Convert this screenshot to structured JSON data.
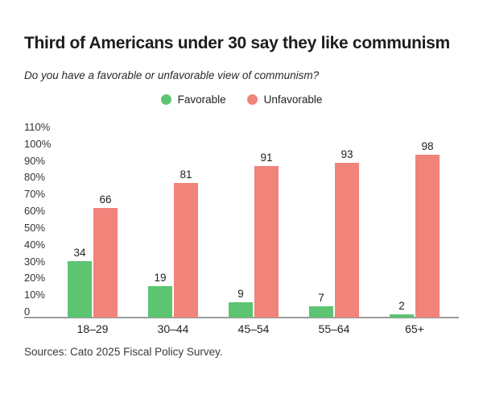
{
  "title": "Third of Americans under 30 say they like communism",
  "subtitle": "Do you have a favorable or unfavorable view of communism?",
  "source": "Sources: Cato 2025 Fiscal Policy Survey.",
  "colors": {
    "favorable": "#5dc472",
    "unfavorable": "#f0837a",
    "axis_line": "#9b9b9b",
    "text": "#1d1d1d"
  },
  "legend": [
    {
      "label": "Favorable",
      "color": "#5dc472"
    },
    {
      "label": "Unfavorable",
      "color": "#f0837a"
    }
  ],
  "chart_data": {
    "type": "bar",
    "title": "Third of Americans under 30 say they like communism",
    "subtitle": "Do you have a favorable or unfavorable view of communism?",
    "categories": [
      "18–29",
      "30–44",
      "45–54",
      "55–64",
      "65+"
    ],
    "series": [
      {
        "name": "Favorable",
        "color": "#5dc472",
        "values": [
          34,
          19,
          9,
          7,
          2
        ]
      },
      {
        "name": "Unfavorable",
        "color": "#f0837a",
        "values": [
          66,
          81,
          91,
          93,
          98
        ]
      }
    ],
    "xlabel": "",
    "ylabel": "",
    "ylim": [
      0,
      110
    ],
    "yticks": [
      {
        "value": 110,
        "label": "110%"
      },
      {
        "value": 100,
        "label": "100%"
      },
      {
        "value": 90,
        "label": "90%"
      },
      {
        "value": 80,
        "label": "80%"
      },
      {
        "value": 70,
        "label": "70%"
      },
      {
        "value": 60,
        "label": "60%"
      },
      {
        "value": 50,
        "label": "50%"
      },
      {
        "value": 40,
        "label": "40%"
      },
      {
        "value": 30,
        "label": "30%"
      },
      {
        "value": 20,
        "label": "20%"
      },
      {
        "value": 10,
        "label": "10%"
      },
      {
        "value": 0,
        "label": "0"
      }
    ],
    "grid": false,
    "legend_position": "top-center",
    "data_labels": true
  }
}
